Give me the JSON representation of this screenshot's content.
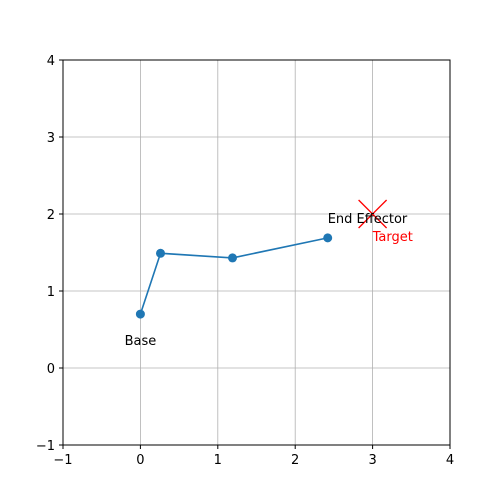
{
  "chart_data": {
    "type": "line",
    "title": "",
    "xlabel": "",
    "ylabel": "",
    "xlim": [
      -1,
      4
    ],
    "ylim": [
      -1,
      4
    ],
    "xticks": [
      -1,
      0,
      1,
      2,
      3,
      4
    ],
    "yticks": [
      -1,
      0,
      1,
      2,
      3,
      4
    ],
    "grid": true,
    "aspect": "equal",
    "series": [
      {
        "color": "#1f77b4",
        "marker": "circle",
        "points": [
          {
            "x": 0.0,
            "y": 0.7
          },
          {
            "x": 0.26,
            "y": 1.49
          },
          {
            "x": 1.19,
            "y": 1.43
          },
          {
            "x": 2.42,
            "y": 1.69
          }
        ]
      }
    ],
    "target": {
      "x": 3.0,
      "y": 2.0,
      "marker": "x",
      "color": "#ff0000"
    },
    "annotations": [
      {
        "text": "Base",
        "x": 0.0,
        "y": 0.7,
        "color": "#000000"
      },
      {
        "text": "End Effector",
        "x": 2.42,
        "y": 1.69,
        "color": "#000000"
      },
      {
        "text": "Target",
        "x": 3.0,
        "y": 2.0,
        "color": "#ff0000"
      }
    ]
  }
}
